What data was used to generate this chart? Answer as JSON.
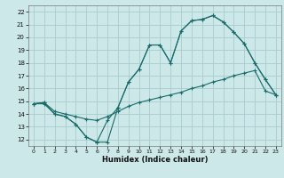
{
  "xlabel": "Humidex (Indice chaleur)",
  "bg_color": "#cce8e8",
  "grid_color": "#aacccc",
  "line_color": "#1a6b6b",
  "xlim": [
    -0.5,
    23.5
  ],
  "ylim": [
    11.5,
    22.5
  ],
  "xticks": [
    0,
    1,
    2,
    3,
    4,
    5,
    6,
    7,
    8,
    9,
    10,
    11,
    12,
    13,
    14,
    15,
    16,
    17,
    18,
    19,
    20,
    21,
    22,
    23
  ],
  "yticks": [
    12,
    13,
    14,
    15,
    16,
    17,
    18,
    19,
    20,
    21,
    22
  ],
  "line1_x": [
    0,
    1,
    2,
    3,
    4,
    5,
    6,
    7,
    8,
    9,
    10,
    11,
    12,
    13,
    14,
    15,
    16,
    17,
    18,
    19,
    20,
    21,
    22,
    23
  ],
  "line1_y": [
    14.8,
    14.9,
    14.0,
    13.8,
    13.2,
    12.2,
    11.8,
    13.5,
    14.5,
    16.5,
    17.5,
    19.4,
    19.4,
    18.0,
    20.5,
    21.3,
    21.4,
    21.7,
    21.2,
    20.4,
    19.5,
    18.0,
    16.7,
    15.5
  ],
  "line2_x": [
    0,
    1,
    2,
    3,
    4,
    5,
    6,
    7,
    8,
    9,
    10,
    11,
    12,
    13,
    14,
    15,
    16,
    17,
    18,
    19,
    20,
    21,
    22,
    23
  ],
  "line2_y": [
    14.8,
    14.9,
    14.2,
    14.0,
    13.8,
    13.6,
    13.5,
    13.8,
    14.2,
    14.6,
    14.9,
    15.1,
    15.3,
    15.5,
    15.7,
    16.0,
    16.2,
    16.5,
    16.7,
    17.0,
    17.2,
    17.4,
    15.8,
    15.5
  ],
  "line3_x": [
    0,
    1,
    2,
    3,
    4,
    5,
    6,
    7,
    8,
    9,
    10,
    11,
    12,
    13,
    14,
    15,
    16,
    17,
    18,
    19,
    20,
    21,
    22,
    23
  ],
  "line3_y": [
    14.8,
    14.8,
    14.0,
    13.8,
    13.2,
    12.2,
    11.8,
    11.8,
    14.5,
    16.5,
    17.5,
    19.4,
    19.4,
    18.0,
    20.5,
    21.3,
    21.4,
    21.7,
    21.2,
    20.4,
    19.5,
    18.0,
    16.7,
    15.5
  ]
}
